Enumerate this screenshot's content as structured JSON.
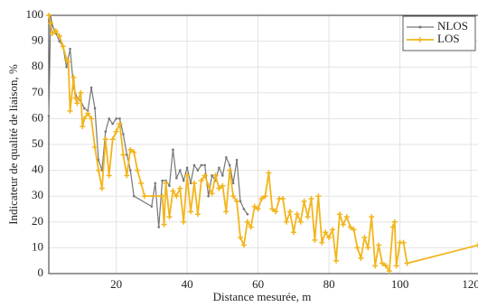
{
  "chart_data": {
    "type": "line",
    "xlabel": "Distance mesurée, m",
    "ylabel": "Indicateur de qualité de liaison, %",
    "xlim": [
      1,
      122
    ],
    "ylim": [
      0,
      100
    ],
    "xticks": [
      20,
      40,
      60,
      80,
      100,
      120
    ],
    "yticks": [
      0,
      10,
      20,
      30,
      40,
      50,
      60,
      70,
      80,
      90,
      100
    ],
    "grid": true,
    "legend": "upper right",
    "series": [
      {
        "name": "NLOS",
        "color": "#777777",
        "marker": "dot",
        "x": [
          1,
          1.5,
          2,
          3,
          4,
          5,
          6,
          7,
          8,
          9,
          10,
          11,
          12,
          13,
          14,
          15,
          16,
          17,
          18,
          19,
          20,
          21,
          22,
          23,
          24,
          25,
          30,
          31,
          32,
          33,
          34,
          35,
          36,
          37,
          38,
          39,
          40,
          41,
          42,
          43,
          44,
          45,
          46,
          47,
          48,
          49,
          50,
          51,
          52,
          53,
          54,
          55,
          56,
          57
        ],
        "values": [
          61,
          100,
          96,
          93,
          90,
          88,
          80,
          87,
          72,
          68,
          67,
          64,
          63,
          72,
          64,
          44,
          40,
          55,
          60,
          58,
          60,
          60,
          54,
          46,
          40,
          30,
          26,
          35,
          18,
          36,
          36,
          34,
          48,
          37,
          40,
          36,
          41,
          35,
          42,
          40,
          42,
          42,
          30,
          38,
          36,
          41,
          38,
          45,
          42,
          35,
          44,
          28,
          25,
          23
        ]
      },
      {
        "name": "LOS",
        "color": "#f2b51c",
        "marker": "plus",
        "x": [
          1,
          1.5,
          2,
          3,
          4,
          5,
          6,
          6.5,
          7,
          8,
          8.5,
          9,
          10,
          10.5,
          11,
          12,
          13,
          14,
          15,
          16,
          17,
          18,
          19,
          20,
          21,
          22,
          23,
          24,
          25,
          26,
          27,
          28,
          33,
          33.5,
          34,
          35,
          36,
          37,
          38,
          39,
          40,
          41,
          42,
          43,
          44,
          45,
          46,
          47,
          48,
          49,
          50,
          51,
          52,
          53,
          54,
          55,
          56,
          57,
          58,
          59,
          60,
          61,
          62,
          63,
          64,
          65,
          66,
          67,
          68,
          69,
          70,
          71,
          72,
          73,
          74,
          75,
          76,
          77,
          78,
          79,
          80,
          81,
          82,
          83,
          84,
          85,
          86,
          87,
          88,
          89,
          90,
          91,
          92,
          93,
          94,
          95,
          96,
          97,
          98,
          98.5,
          99,
          100,
          101,
          102,
          122
        ],
        "values": [
          100,
          97,
          93,
          94,
          92,
          88,
          83,
          82,
          63,
          76,
          68,
          66,
          70,
          57,
          60,
          62,
          60,
          49,
          40,
          33,
          52,
          38,
          52,
          55,
          58,
          46,
          38,
          48,
          47,
          40,
          35,
          30,
          30,
          19,
          35,
          22,
          32,
          30,
          33,
          20,
          38,
          24,
          35,
          23,
          36,
          38,
          34,
          31,
          38,
          33,
          34,
          24,
          40,
          30,
          28,
          14,
          11,
          20,
          18,
          26,
          25,
          29,
          30,
          39,
          25,
          24,
          29,
          29,
          20,
          24,
          16,
          23,
          20,
          28,
          22,
          29,
          13,
          30,
          12,
          16,
          14,
          17,
          5,
          23,
          19,
          22,
          18,
          17,
          10,
          6,
          14,
          10,
          22,
          3,
          11,
          4,
          3,
          1,
          18,
          20,
          3,
          12,
          12,
          4,
          11
        ]
      }
    ]
  }
}
